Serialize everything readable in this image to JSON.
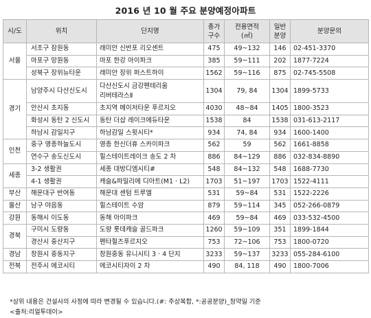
{
  "title": "2016 년 10 월 주요 분양예정아파트",
  "headers": {
    "region": "시/도",
    "location": "위치",
    "complex": "단지명",
    "total_line1": "총가",
    "total_line2": "구수",
    "area_line1": "전용면적",
    "area_line2": "(㎡)",
    "general_line1": "일반",
    "general_line2": "분양",
    "inquiry": "분양문의"
  },
  "regions": {
    "seoul": "서울",
    "gyeonggi": "경기",
    "incheon": "인천",
    "sejong": "세종",
    "busan": "부산",
    "ulsan": "울산",
    "gangwon": "강원",
    "gyeongbuk": "경북",
    "gyeongnam": "경남",
    "jeonbuk": "전북"
  },
  "rows": [
    {
      "location": "서초구 잠원동",
      "complex": "래미안 신반포 리오센트",
      "total": "475",
      "area": "49~132",
      "general": "146",
      "phone": "02-451-3370"
    },
    {
      "location": "마포구 망원동",
      "complex": "마포 한강 아이파크",
      "total": "385",
      "area": "59~111",
      "general": "202",
      "phone": "1877-7224"
    },
    {
      "location": "성북구 장위뉴타운",
      "complex": "래미안 장위 퍼스트하이",
      "total": "1562",
      "area": "59~116",
      "general": "875",
      "phone": "02-745-5508"
    },
    {
      "location": "남양주시 다산신도시",
      "complex_line1": "다산신도시 금강펜테리움",
      "complex_line2": "리버테라스Ⅱ",
      "total": "1304",
      "area": "79, 84",
      "general": "1304",
      "phone": "1899-5733"
    },
    {
      "location": "안산시 초지동",
      "complex": "초지역 메이저타운 푸르지오",
      "total": "4030",
      "area": "48~84",
      "general": "1405",
      "phone": "1800-3523"
    },
    {
      "location": "화성시 동탄 2 신도시",
      "complex": "동탄 더샵 레이크에듀타운",
      "total": "1538",
      "area": "84",
      "general": "1538",
      "phone": "031-613-2117"
    },
    {
      "location": "하남시 감일지구",
      "complex": "하남감일 스윗시티*",
      "total": "934",
      "area": "74, 84",
      "general": "934",
      "phone": "1600-1400"
    },
    {
      "location": "중구 영종하늘도시",
      "complex": "영종 한신더휴 스카이파크",
      "total": "562",
      "area": "59",
      "general": "562",
      "phone": "1661-8858"
    },
    {
      "location": "연수구 송도신도시",
      "complex": "힐스테이트레이크 송도 2 차",
      "total": "886",
      "area": "84~129",
      "general": "886",
      "phone": "032-834-8890"
    },
    {
      "location": "3-2 생활권",
      "complex": "세종 대방디엠시티#",
      "total": "548",
      "area": "84~132",
      "general": "548",
      "phone": "1688-7730"
    },
    {
      "location": "4-1 생활권",
      "complex": "캐슬&파밀리에 디아트(M1 · L2)",
      "total": "1703",
      "area": "51~197",
      "general": "1703",
      "phone": "1522-4111"
    },
    {
      "location": "해운대구 반여동",
      "complex": "해운대 센텀 트루엘",
      "total": "531",
      "area": "59~84",
      "general": "531",
      "phone": "1522-2226"
    },
    {
      "location": "남구 야음동",
      "complex": "힐스테이트 수암",
      "total": "879",
      "area": "59~114",
      "general": "345",
      "phone": "052-266-0879"
    },
    {
      "location": "동해시 이도동",
      "complex": "동해 아이파크",
      "total": "469",
      "area": "59~84",
      "general": "469",
      "phone": "033-532-4500"
    },
    {
      "location": "구미시 도량동",
      "complex": "도량 롯데캐슬 골드파크",
      "total": "1260",
      "area": "59~109",
      "general": "351",
      "phone": "1899-1844"
    },
    {
      "location": "경산시 중산지구",
      "complex": "펜타힐즈푸르지오",
      "total": "753",
      "area": "72~106",
      "general": "753",
      "phone": "1800-0720"
    },
    {
      "location": "창원시 중동지구",
      "complex": "창원중동 유니시티 3 · 4 단지",
      "total": "3233",
      "area": "59~137",
      "general": "3233",
      "phone": "055-284-6100"
    },
    {
      "location": "전주시 에코시티",
      "complex": "에코시티자이 2 차",
      "total": "490",
      "area": "84, 118",
      "general": "490",
      "phone": "1800-7006"
    }
  ],
  "footnote": "*상위 내용은 건설사의 사정에 따라 변경될 수 있습니다.(#: 주상복합, *:공공분양)_청약일 기준",
  "source": "<출처:리얼투데이>"
}
